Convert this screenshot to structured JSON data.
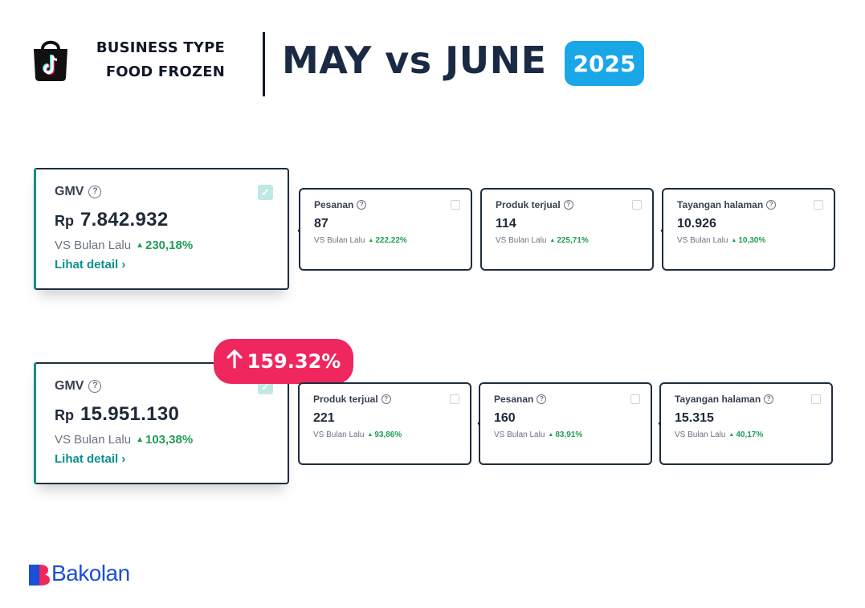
{
  "header": {
    "business_label": "BUSINESS TYPE",
    "business_value": "FOOD FROZEN",
    "title": "MAY vs JUNE",
    "year": "2025",
    "logo_icon": "shopping-bag-music-note-icon"
  },
  "may": {
    "gmv": {
      "title": "GMV",
      "currency": "Rp",
      "value": "7.842.932",
      "vs_label": "VS Bulan Lalu",
      "change": "230,18%",
      "link": "Lihat detail ›"
    },
    "stats": [
      {
        "title": "Pesanan",
        "value": "87",
        "vs_label": "VS Bulan Lalu",
        "change": "222,22%"
      },
      {
        "title": "Produk terjual",
        "value": "114",
        "vs_label": "VS Bulan Lalu",
        "change": "225,71%"
      },
      {
        "title": "Tayangan halaman",
        "value": "10.926",
        "vs_label": "VS Bulan Lalu",
        "change": "10,30%"
      }
    ]
  },
  "june": {
    "gmv": {
      "title": "GMV",
      "currency": "Rp",
      "value": "15.951.130",
      "vs_label": "VS Bulan Lalu",
      "change": "103,38%",
      "link": "Lihat detail ›"
    },
    "stats": [
      {
        "title": "Produk terjual",
        "value": "221",
        "vs_label": "VS Bulan Lalu",
        "change": "93,86%"
      },
      {
        "title": "Pesanan",
        "value": "160",
        "vs_label": "VS Bulan Lalu",
        "change": "83,91%"
      },
      {
        "title": "Tayangan halaman",
        "value": "15.315",
        "vs_label": "VS Bulan Lalu",
        "change": "40,17%"
      }
    ]
  },
  "increase_badge": "159.32%",
  "brand": {
    "name": "Bakolan"
  },
  "colors": {
    "accent_blue": "#1aa7e8",
    "increase_pink": "#f0265f",
    "positive_green": "#1f9d55",
    "link_teal": "#0b8f8f",
    "brand_blue": "#1b4fd8"
  }
}
